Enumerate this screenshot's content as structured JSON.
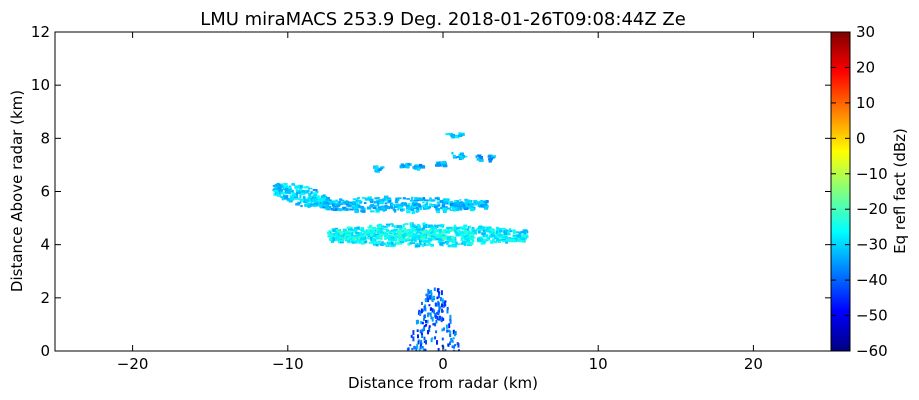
{
  "chart_data": {
    "type": "heatmap",
    "title": "LMU miraMACS 253.9 Deg. 2018-01-26T09:08:44Z  Ze",
    "xlabel": "Distance from radar (km)",
    "ylabel": "Distance Above radar  (km)",
    "xlim": [
      -25,
      25
    ],
    "ylim": [
      0,
      12
    ],
    "xticks": [
      -20,
      -10,
      0,
      10,
      20
    ],
    "yticks": [
      0,
      2,
      4,
      6,
      8,
      10,
      12
    ],
    "grid": false,
    "colorbar": {
      "label": "Eq refl fact (dBz)",
      "range": [
        -60,
        30
      ],
      "ticks": [
        -60,
        -50,
        -40,
        -30,
        -20,
        -10,
        0,
        10,
        20,
        30
      ],
      "colormap": "jet",
      "colors": [
        "#000080",
        "#0000ff",
        "#0080ff",
        "#00ffff",
        "#80ff80",
        "#ffff00",
        "#ff8000",
        "#ff0000",
        "#800000"
      ]
    },
    "echo_regions": [
      {
        "shape": "streak",
        "x": [
          -8.0,
          2.8
        ],
        "y": [
          5.25,
          5.85
        ],
        "dbz": -32
      },
      {
        "shape": "streak",
        "x": [
          -11.0,
          -7.5
        ],
        "y": [
          5.5,
          6.3
        ],
        "dbz": -30
      },
      {
        "shape": "streak",
        "x": [
          -7.5,
          5.3
        ],
        "y": [
          3.95,
          4.85
        ],
        "dbz": -28
      },
      {
        "shape": "core",
        "x": [
          -7.0,
          2.0
        ],
        "y": [
          4.25,
          4.6
        ],
        "dbz": -25
      },
      {
        "shape": "fragment",
        "x": [
          -4.5,
          -4.0
        ],
        "y": [
          6.8,
          7.0
        ],
        "dbz": -32
      },
      {
        "shape": "fragment",
        "x": [
          -2.8,
          -2.3
        ],
        "y": [
          6.95,
          7.1
        ],
        "dbz": -34
      },
      {
        "shape": "fragment",
        "x": [
          -2.0,
          -1.3
        ],
        "y": [
          6.9,
          7.05
        ],
        "dbz": -33
      },
      {
        "shape": "fragment",
        "x": [
          -0.6,
          0.0
        ],
        "y": [
          7.0,
          7.15
        ],
        "dbz": -32
      },
      {
        "shape": "fragment",
        "x": [
          0.5,
          1.4
        ],
        "y": [
          7.3,
          7.5
        ],
        "dbz": -31
      },
      {
        "shape": "fragment",
        "x": [
          2.0,
          3.2
        ],
        "y": [
          7.2,
          7.4
        ],
        "dbz": -33
      },
      {
        "shape": "fragment",
        "x": [
          0.1,
          1.2
        ],
        "y": [
          8.1,
          8.25
        ],
        "dbz": -31
      },
      {
        "shape": "clutter",
        "x": [
          -2.5,
          1.2
        ],
        "y": [
          0.0,
          2.4
        ],
        "dbz": -40
      }
    ]
  }
}
